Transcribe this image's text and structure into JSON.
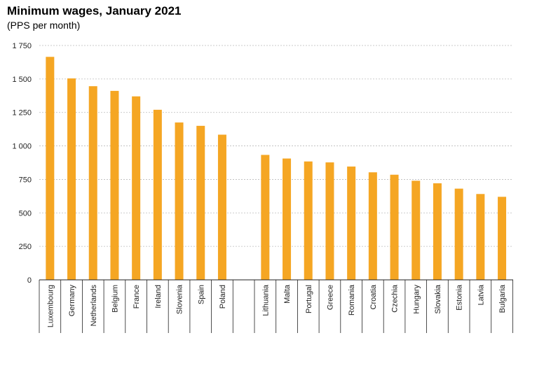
{
  "chart_data": {
    "type": "bar",
    "title": "Minimum wages, January 2021",
    "subtitle": "(PPS per month)",
    "groups": [
      {
        "categories": [
          "Luxembourg",
          "Germany",
          "Netherlands",
          "Belgium",
          "France",
          "Ireland",
          "Slovenia",
          "Spain",
          "Poland"
        ],
        "values": [
          1665,
          1504,
          1446,
          1411,
          1370,
          1270,
          1175,
          1150,
          1084
        ]
      },
      {
        "categories": [
          "Lithuania",
          "Malta",
          "Portugal",
          "Greece",
          "Romania",
          "Croatia",
          "Czechia",
          "Hungary",
          "Slovakia",
          "Estonia",
          "Latvia",
          "Bulgaria"
        ],
        "values": [
          933,
          906,
          884,
          877,
          846,
          803,
          785,
          740,
          721,
          681,
          641,
          620
        ]
      }
    ],
    "yticks": [
      "0",
      "250",
      "500",
      "750",
      "1 000",
      "1 250",
      "1 500",
      "1 750"
    ],
    "ylim": [
      0,
      1750
    ],
    "grid": true,
    "bar_color": "#f5a623",
    "grid_color": "#bbbbbb"
  }
}
